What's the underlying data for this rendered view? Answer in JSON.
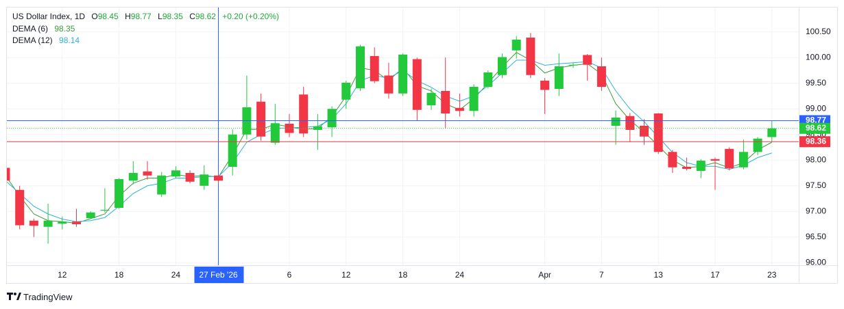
{
  "chart_data": {
    "type": "candlestick",
    "title": "US Dollar Index, 1D",
    "ohlc_labels": [
      "O",
      "H",
      "L",
      "C"
    ],
    "change": "+0.20 (+0.20%)",
    "categories": [
      null,
      null,
      null,
      null,
      "12",
      null,
      null,
      null,
      "18",
      null,
      null,
      null,
      "24",
      null,
      null,
      "27 Feb '26",
      null,
      null,
      null,
      null,
      "6",
      null,
      null,
      null,
      "12",
      null,
      null,
      null,
      "18",
      null,
      null,
      null,
      "24",
      null,
      null,
      null,
      null,
      null,
      "Apr",
      null,
      null,
      null,
      "7",
      null,
      null,
      null,
      "13",
      null,
      null,
      null,
      "17",
      null,
      null,
      null,
      "23"
    ],
    "crosshair_category": 15,
    "open": [
      97.85,
      97.42,
      96.82,
      96.7,
      96.76,
      96.8,
      96.87,
      97.02,
      97.07,
      97.6,
      97.78,
      97.33,
      97.68,
      97.75,
      97.5,
      97.7,
      97.87,
      98.5,
      99.14,
      98.34,
      98.71,
      99.28,
      98.59,
      98.64,
      99.18,
      99.4,
      100.03,
      99.65,
      99.3,
      99.97,
      99.07,
      99.35,
      99.02,
      98.96,
      99.43,
      99.66,
      100.14,
      100.39,
      99.55,
      99.39,
      99.85,
      100.05,
      99.83,
      98.67,
      98.86,
      98.67,
      98.91,
      98.16,
      97.87,
      97.79,
      98.02,
      98.22,
      97.86,
      98.16,
      98.45
    ],
    "high": [
      97.9,
      97.5,
      96.86,
      97.15,
      96.9,
      97.05,
      97.0,
      97.45,
      97.65,
      97.98,
      97.98,
      97.77,
      97.88,
      97.8,
      97.9,
      97.72,
      98.6,
      99.65,
      99.3,
      99.1,
      98.9,
      99.43,
      98.9,
      99.05,
      99.55,
      100.25,
      100.2,
      99.9,
      100.08,
      100.0,
      99.4,
      100.0,
      99.3,
      99.48,
      99.75,
      100.08,
      100.42,
      100.48,
      99.6,
      100.08,
      99.9,
      100.07,
      100.0,
      98.97,
      98.92,
      98.8,
      98.92,
      98.2,
      98.05,
      98.02,
      98.05,
      98.25,
      98.4,
      98.45,
      98.77
    ],
    "low": [
      97.55,
      96.65,
      96.5,
      96.37,
      96.65,
      96.7,
      96.85,
      96.98,
      97.05,
      97.53,
      97.62,
      97.28,
      97.65,
      97.55,
      97.42,
      97.55,
      97.7,
      98.4,
      98.38,
      98.3,
      98.45,
      98.45,
      98.2,
      98.45,
      99.0,
      99.35,
      99.5,
      99.2,
      99.25,
      98.77,
      98.98,
      98.62,
      98.85,
      98.85,
      99.4,
      99.6,
      99.98,
      99.6,
      98.9,
      99.25,
      99.8,
      99.55,
      99.35,
      98.3,
      98.35,
      98.3,
      98.12,
      97.75,
      97.8,
      97.65,
      97.42,
      97.8,
      97.82,
      98.1,
      98.35
    ],
    "close": [
      97.6,
      96.73,
      96.72,
      96.82,
      96.8,
      96.75,
      96.98,
      97.03,
      97.63,
      97.75,
      97.7,
      97.7,
      97.8,
      97.58,
      97.72,
      97.6,
      98.5,
      99.03,
      98.46,
      98.72,
      98.53,
      98.52,
      98.66,
      99.0,
      99.51,
      100.22,
      99.54,
      99.3,
      100.06,
      98.98,
      99.31,
      98.91,
      98.96,
      99.43,
      99.71,
      100.01,
      100.35,
      99.66,
      99.37,
      99.83,
      99.86,
      99.86,
      99.43,
      98.83,
      98.59,
      98.46,
      98.16,
      97.86,
      97.83,
      97.99,
      97.99,
      97.84,
      98.16,
      98.42,
      98.62
    ],
    "up_color": "#22c93b",
    "down_color": "#f23645",
    "series": [
      {
        "name": "DEMA (6)",
        "color": "#3f9a3a",
        "values": [
          97.7,
          97.3,
          96.95,
          96.82,
          96.8,
          96.77,
          96.86,
          96.95,
          97.3,
          97.55,
          97.65,
          97.65,
          97.72,
          97.68,
          97.7,
          97.67,
          98.1,
          98.6,
          98.6,
          98.7,
          98.65,
          98.6,
          98.62,
          98.85,
          99.25,
          99.8,
          99.75,
          99.55,
          99.8,
          99.45,
          99.35,
          99.1,
          98.98,
          99.2,
          99.5,
          99.82,
          100.1,
          99.95,
          99.7,
          99.8,
          99.85,
          99.88,
          99.68,
          99.1,
          98.78,
          98.55,
          98.28,
          98.0,
          97.85,
          97.88,
          97.95,
          97.85,
          97.95,
          98.2,
          98.35
        ]
      },
      {
        "name": "DEMA (12)",
        "color": "#2bb3d9",
        "values": [
          97.6,
          97.35,
          97.1,
          96.95,
          96.85,
          96.8,
          96.82,
          96.88,
          97.1,
          97.35,
          97.5,
          97.55,
          97.65,
          97.65,
          97.68,
          97.68,
          97.95,
          98.35,
          98.5,
          98.62,
          98.63,
          98.64,
          98.66,
          98.8,
          99.1,
          99.55,
          99.65,
          99.6,
          99.75,
          99.55,
          99.42,
          99.25,
          99.15,
          99.25,
          99.45,
          99.7,
          99.95,
          99.95,
          99.85,
          99.88,
          99.9,
          99.92,
          99.8,
          99.35,
          99.0,
          98.75,
          98.45,
          98.15,
          97.95,
          97.88,
          97.88,
          97.82,
          97.9,
          98.05,
          98.14
        ]
      }
    ],
    "price_lines": [
      {
        "value": 98.77,
        "color": "#2962ff",
        "style": "solid"
      },
      {
        "value": 98.62,
        "color": "#22c93b",
        "style": "dotted"
      },
      {
        "value": 98.36,
        "color": "#f23645",
        "style": "solid"
      }
    ],
    "ylim": [
      95.95,
      100.99
    ],
    "yticks": [
      {
        "value": 96,
        "label": "96.00"
      },
      {
        "value": 96.5,
        "label": "96.50"
      },
      {
        "value": 97,
        "label": "97.00"
      },
      {
        "value": 97.5,
        "label": "97.50"
      },
      {
        "value": 98,
        "label": "98.00"
      },
      {
        "value": 98.5,
        "label": "98.50"
      },
      {
        "value": 99,
        "label": "99.00"
      },
      {
        "value": 99.5,
        "label": "99.50"
      },
      {
        "value": 100,
        "label": "100.00"
      },
      {
        "value": 100.5,
        "label": "100.50"
      }
    ],
    "grid": true
  },
  "footer": {
    "brand": "TradingView"
  }
}
